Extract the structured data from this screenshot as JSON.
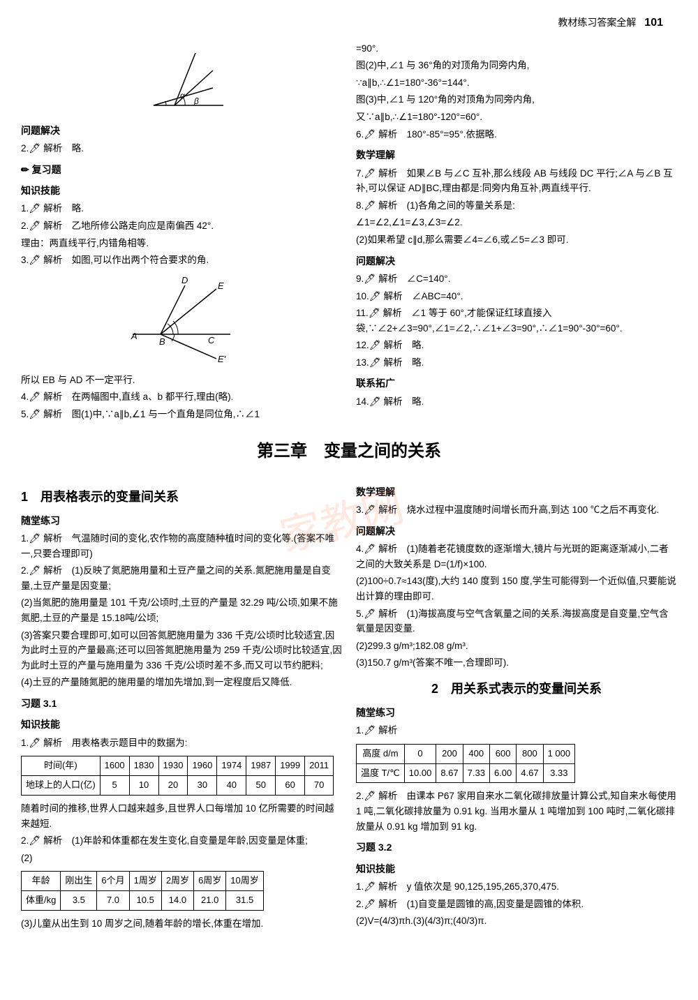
{
  "header": {
    "title": "教材练习答案全解",
    "page": "101"
  },
  "upper_left": {
    "angle_diagram": {
      "type": "diagram",
      "labels": [
        "α",
        "β"
      ],
      "line_color": "#000000",
      "arc_color": "#000000"
    },
    "section1": "问题解决",
    "q2": "2.🖊 解析　略.",
    "review_title": "✏ 复习题",
    "skill_title": "知识技能",
    "q_skill1": "1.🖊 解析　略.",
    "q_skill2": "2.🖊 解析　乙地所修公路走向应是南偏西 42°.",
    "q_skill2_reason": "理由：两直线平行,内错角相等.",
    "q_skill3": "3.🖊 解析　如图,可以作出两个符合要求的角.",
    "ray_diagram": {
      "type": "diagram",
      "labels": [
        "A",
        "B",
        "C",
        "D",
        "E",
        "E'"
      ],
      "line_color": "#000000"
    },
    "q_skill3_note": "所以 EB 与 AD 不一定平行.",
    "q4": "4.🖊 解析　在两幅图中,直线 a、b 都平行,理由(略).",
    "q5": "5.🖊 解析　图(1)中,∵a∥b,∠1 与一个直角是同位角,∴∠1"
  },
  "upper_right": {
    "l1": "=90°.",
    "l2": "图(2)中,∠1 与 36°角的对顶角为同旁内角,",
    "l3": "∵a∥b,∴∠1=180°-36°=144°.",
    "l4": "图(3)中,∠1 与 120°角的对顶角为同旁内角,",
    "l5": "又∵a∥b,∴∠1=180°-120°=60°.",
    "q6": "6.🖊 解析　180°-85°=95°.依据略.",
    "math_title": "数学理解",
    "q7": "7.🖊 解析　如果∠B 与∠C 互补,那么线段 AB 与线段 DC 平行;∠A 与∠B 互补,可以保证 AD∥BC,理由都是:同旁内角互补,两直线平行.",
    "q8": "8.🖊 解析　(1)各角之间的等量关系是:",
    "q8_l2": "∠1=∠2,∠1=∠3,∠3=∠2.",
    "q8_l3": "(2)如果希望 c∥d,那么需要∠4=∠6,或∠5=∠3 即可.",
    "problem_title": "问题解决",
    "q9": "9.🖊 解析　∠C=140°.",
    "q10": "10.🖊 解析　∠ABC=40°.",
    "q11": "11.🖊 解析　∠1 等于 60°,才能保证红球直接入袋,∵∠2+∠3=90°,∠1=∠2,∴∠1+∠3=90°,∴∠1=90°-30°=60°.",
    "q12": "12.🖊 解析　略.",
    "q13": "13.🖊 解析　略.",
    "extend_title": "联系拓广",
    "q14": "14.🖊 解析　略."
  },
  "chapter": "第三章　变量之间的关系",
  "lower_left": {
    "title1": "1　用表格表示的变量间关系",
    "suitang": "随堂练习",
    "q1": "1.🖊 解析　气温随时间的变化,农作物的高度随种植时间的变化等.(答案不唯一,只要合理即可)",
    "q2": "2.🖊 解析　(1)反映了氮肥施用量和土豆产量之间的关系.氮肥施用量是自变量,土豆产量是因变量;",
    "q2_2": "(2)当氮肥的施用量是 101 千克/公顷时,土豆的产量是 32.29 吨/公顷,如果不施氮肥,土豆的产量是 15.18吨/公顷;",
    "q2_3": "(3)答案只要合理即可,如可以回答氮肥施用量为 336 千克/公顷时比较适宜,因为此时土豆的产量最高;还可以回答氮肥施用量为 259 千克/公顷时比较适宜,因为此时土豆的产量与施用量为 336 千克/公顷时差不多,而又可以节约肥料;",
    "q2_4": "(4)土豆的产量随氮肥的施用量的增加先增加,到一定程度后又降低.",
    "xiti31": "习题 3.1",
    "skill": "知识技能",
    "q_t1": "1.🖊 解析　用表格表示题目中的数据为:",
    "table1": {
      "headers": [
        "时间(年)",
        "1600",
        "1830",
        "1930",
        "1960",
        "1974",
        "1987",
        "1999",
        "2011"
      ],
      "row_label": "地球上的人口(亿)",
      "row_data": [
        "5",
        "10",
        "20",
        "30",
        "40",
        "50",
        "60",
        "70"
      ]
    },
    "t1_note": "随着时间的推移,世界人口越来越多,且世界人口每增加 10 亿所需要的时间越来越短.",
    "q_t2": "2.🖊 解析　(1)年龄和体重都在发生变化,自变量是年龄,因变量是体重;",
    "q_t2_2": "(2)",
    "table2": {
      "headers": [
        "年龄",
        "刚出生",
        "6个月",
        "1周岁",
        "2周岁",
        "6周岁",
        "10周岁"
      ],
      "row_label": "体重/kg",
      "row_data": [
        "3.5",
        "7.0",
        "10.5",
        "14.0",
        "21.0",
        "31.5"
      ]
    },
    "q_t2_3": "(3)儿童从出生到 10 周岁之间,随着年龄的增长,体重在增加."
  },
  "lower_right": {
    "math_title": "数学理解",
    "q3": "3.🖊 解析　烧水过程中温度随时间增长而升高,到达 100 ℃之后不再变化.",
    "problem_title": "问题解决",
    "q4": "4.🖊 解析　(1)随着老花镜度数的逐渐增大,镜片与光斑的距离逐渐减小,二者之间的大致关系是 D=(1/f)×100.",
    "q4_2": "(2)100÷0.7≈143(度),大约 140 度到 150 度,学生可能得到一个近似值,只要能说出计算的理由即可.",
    "q5": "5.🖊 解析　(1)海拔高度与空气含氧量之间的关系.海拔高度是自变量,空气含氧量是因变量.",
    "q5_2": "(2)299.3 g/m³;182.08 g/m³.",
    "q5_3": "(3)150.7 g/m³(答案不唯一,合理即可).",
    "title2": "2　用关系式表示的变量间关系",
    "suitang2": "随堂练习",
    "q_s1": "1.🖊 解析",
    "table3": {
      "headers": [
        "高度 d/m",
        "0",
        "200",
        "400",
        "600",
        "800",
        "1 000"
      ],
      "row_label": "温度 T/℃",
      "row_data": [
        "10.00",
        "8.67",
        "7.33",
        "6.00",
        "4.67",
        "3.33"
      ]
    },
    "q_s2": "2.🖊 解析　由课本 P67 家用自来水二氧化碳排放量计算公式,知自来水每使用 1 吨,二氧化碳排放量为 0.91 kg. 当用水量从 1 吨增加到 100 吨时,二氧化碳排放量从 0.91 kg 增加到 91 kg.",
    "xiti32": "习题 3.2",
    "skill2": "知识技能",
    "q_k1": "1.🖊 解析　y 值依次是 90,125,195,265,370,475.",
    "q_k2": "2.🖊 解析　(1)自变量是圆锥的高,因变量是圆锥的体积.",
    "q_k2_2": "(2)V=(4/3)πh.(3)(4/3)π;(40/3)π."
  },
  "watermark_text": "家教网"
}
